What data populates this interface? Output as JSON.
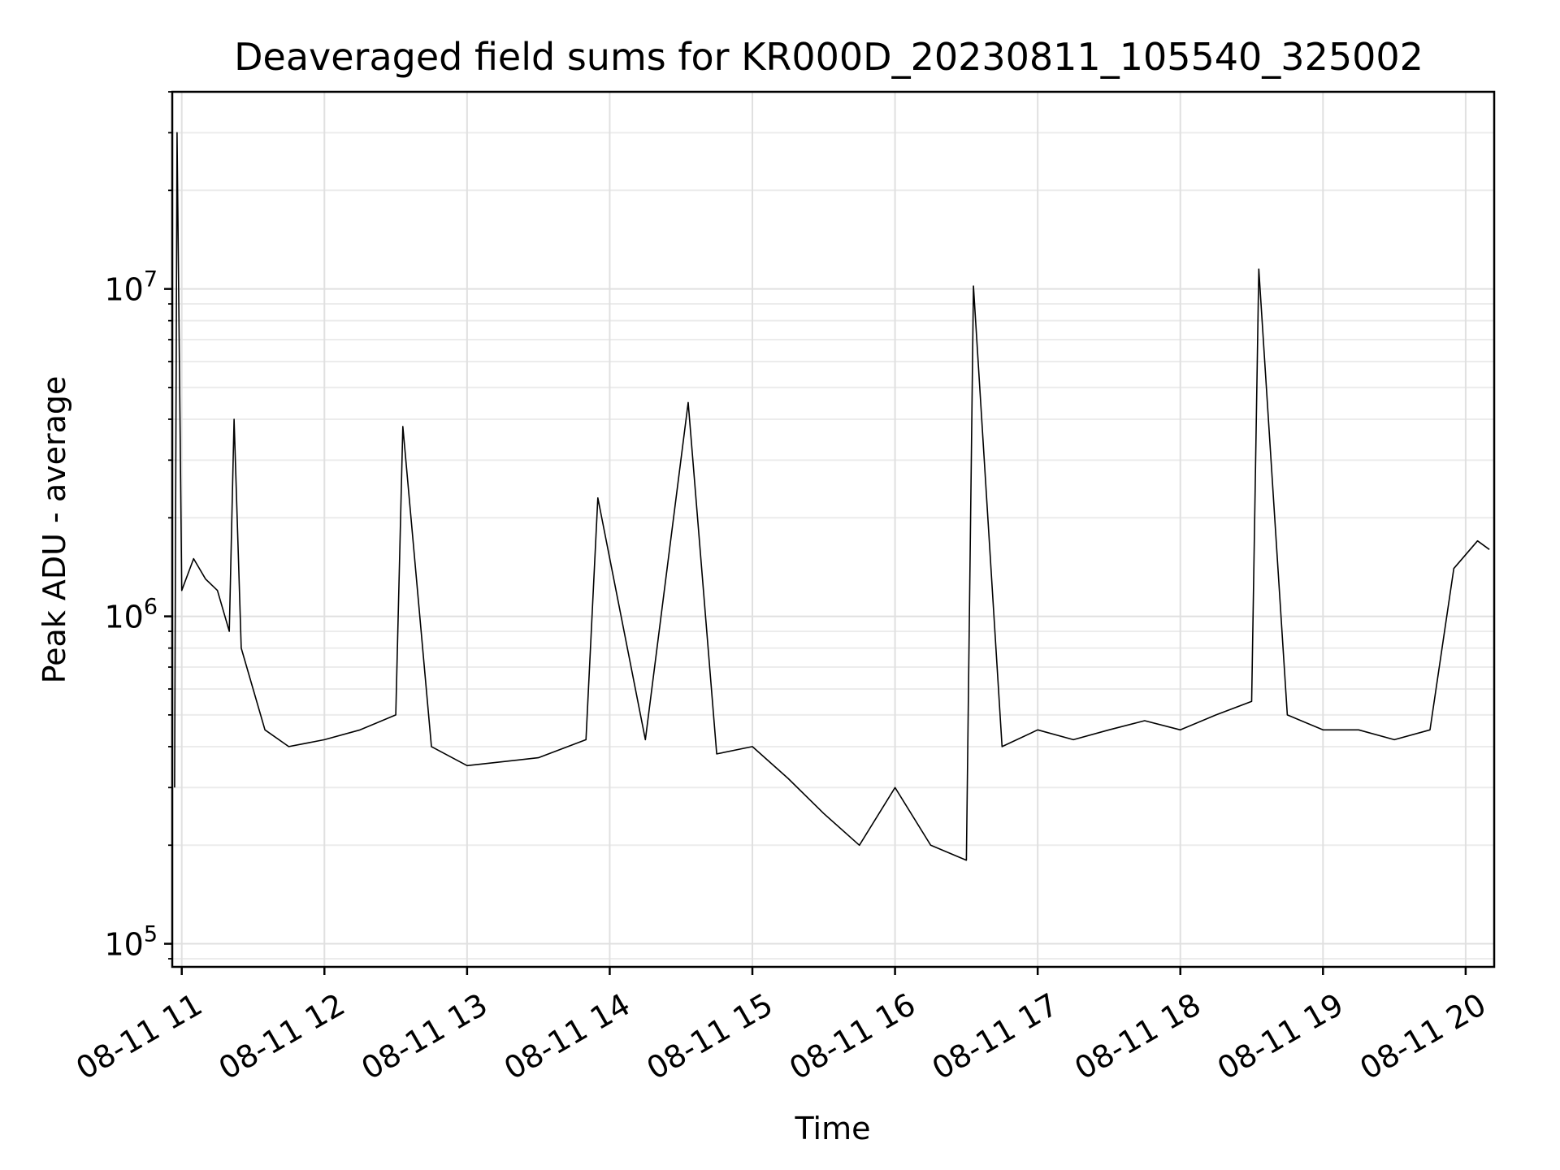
{
  "chart_data": {
    "type": "line",
    "title": "Deaveraged field sums for KR000D_20230811_105540_325002",
    "xlabel": "Time",
    "ylabel": "Peak ADU - average",
    "y_scale": "log",
    "ylim": [
      85000,
      40000000
    ],
    "xlim": [
      "2023-08-11 10:56",
      "2023-08-11 20:12"
    ],
    "x_ticks": [
      {
        "t": "2023-08-11 11:00",
        "label": "08-11 11"
      },
      {
        "t": "2023-08-11 12:00",
        "label": "08-11 12"
      },
      {
        "t": "2023-08-11 13:00",
        "label": "08-11 13"
      },
      {
        "t": "2023-08-11 14:00",
        "label": "08-11 14"
      },
      {
        "t": "2023-08-11 15:00",
        "label": "08-11 15"
      },
      {
        "t": "2023-08-11 16:00",
        "label": "08-11 16"
      },
      {
        "t": "2023-08-11 17:00",
        "label": "08-11 17"
      },
      {
        "t": "2023-08-11 18:00",
        "label": "08-11 18"
      },
      {
        "t": "2023-08-11 19:00",
        "label": "08-11 19"
      },
      {
        "t": "2023-08-11 20:00",
        "label": "08-11 20"
      }
    ],
    "y_ticks": [
      {
        "value": 100000,
        "base": "10",
        "exp": "5"
      },
      {
        "value": 1000000,
        "base": "10",
        "exp": "6"
      },
      {
        "value": 10000000,
        "base": "10",
        "exp": "7"
      }
    ],
    "grid": true,
    "line_color": "#000000",
    "series": [
      {
        "points": [
          [
            "2023-08-11 10:57",
            300000
          ],
          [
            "2023-08-11 10:58",
            30000000
          ],
          [
            "2023-08-11 11:00",
            1200000
          ],
          [
            "2023-08-11 11:05",
            1500000
          ],
          [
            "2023-08-11 11:10",
            1300000
          ],
          [
            "2023-08-11 11:15",
            1200000
          ],
          [
            "2023-08-11 11:20",
            900000
          ],
          [
            "2023-08-11 11:22",
            4000000
          ],
          [
            "2023-08-11 11:25",
            800000
          ],
          [
            "2023-08-11 11:30",
            600000
          ],
          [
            "2023-08-11 11:35",
            450000
          ],
          [
            "2023-08-11 11:45",
            400000
          ],
          [
            "2023-08-11 12:00",
            420000
          ],
          [
            "2023-08-11 12:15",
            450000
          ],
          [
            "2023-08-11 12:30",
            500000
          ],
          [
            "2023-08-11 12:33",
            3800000
          ],
          [
            "2023-08-11 12:45",
            400000
          ],
          [
            "2023-08-11 13:00",
            350000
          ],
          [
            "2023-08-11 13:30",
            370000
          ],
          [
            "2023-08-11 13:50",
            420000
          ],
          [
            "2023-08-11 13:55",
            2300000
          ],
          [
            "2023-08-11 14:15",
            420000
          ],
          [
            "2023-08-11 14:33",
            4500000
          ],
          [
            "2023-08-11 14:45",
            380000
          ],
          [
            "2023-08-11 15:00",
            400000
          ],
          [
            "2023-08-11 15:15",
            320000
          ],
          [
            "2023-08-11 15:30",
            250000
          ],
          [
            "2023-08-11 15:45",
            200000
          ],
          [
            "2023-08-11 16:00",
            300000
          ],
          [
            "2023-08-11 16:15",
            200000
          ],
          [
            "2023-08-11 16:30",
            180000
          ],
          [
            "2023-08-11 16:33",
            10200000
          ],
          [
            "2023-08-11 16:45",
            400000
          ],
          [
            "2023-08-11 17:00",
            450000
          ],
          [
            "2023-08-11 17:15",
            420000
          ],
          [
            "2023-08-11 17:30",
            450000
          ],
          [
            "2023-08-11 17:45",
            480000
          ],
          [
            "2023-08-11 18:00",
            450000
          ],
          [
            "2023-08-11 18:15",
            500000
          ],
          [
            "2023-08-11 18:30",
            550000
          ],
          [
            "2023-08-11 18:33",
            11500000
          ],
          [
            "2023-08-11 18:45",
            500000
          ],
          [
            "2023-08-11 19:00",
            450000
          ],
          [
            "2023-08-11 19:15",
            450000
          ],
          [
            "2023-08-11 19:30",
            420000
          ],
          [
            "2023-08-11 19:45",
            450000
          ],
          [
            "2023-08-11 19:55",
            1400000
          ],
          [
            "2023-08-11 20:05",
            1700000
          ],
          [
            "2023-08-11 20:10",
            1600000
          ]
        ]
      }
    ]
  }
}
